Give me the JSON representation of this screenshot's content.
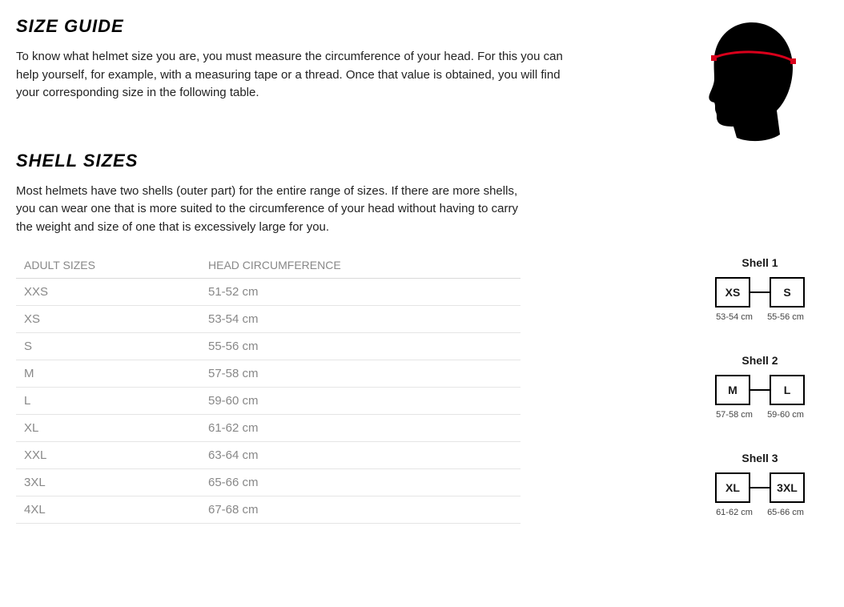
{
  "sizeGuide": {
    "heading": "SIZE GUIDE",
    "intro": "To know what helmet size you are, you must measure the circumference of your head. For this you can help yourself, for example, with a measuring tape or a thread. Once that value is obtained, you will find your corresponding size in the following table."
  },
  "shellSizes": {
    "heading": "SHELL SIZES",
    "intro": "Most helmets have two shells (outer part) for the entire range of sizes. If there are more shells, you can wear one that is more suited to the circumference of your head without having to carry the weight and size of one that is excessively large for you."
  },
  "table": {
    "columns": [
      "ADULT SIZES",
      "HEAD CIRCUMFERENCE"
    ],
    "rows": [
      [
        "XXS",
        "51-52 cm"
      ],
      [
        "XS",
        "53-54 cm"
      ],
      [
        "S",
        "55-56 cm"
      ],
      [
        "M",
        "57-58 cm"
      ],
      [
        "L",
        "59-60 cm"
      ],
      [
        "XL",
        "61-62 cm"
      ],
      [
        "XXL",
        "63-64 cm"
      ],
      [
        "3XL",
        "65-66 cm"
      ],
      [
        "4XL",
        "67-68 cm"
      ]
    ]
  },
  "shells": [
    {
      "title": "Shell 1",
      "left": "XS",
      "leftSub": "53-54 cm",
      "right": "S",
      "rightSub": "55-56 cm"
    },
    {
      "title": "Shell 2",
      "left": "M",
      "leftSub": "57-58 cm",
      "right": "L",
      "rightSub": "59-60 cm"
    },
    {
      "title": "Shell 3",
      "left": "XL",
      "leftSub": "61-62 cm",
      "right": "3XL",
      "rightSub": "65-66 cm"
    }
  ],
  "headIllustration": {
    "silhouetteColor": "#000000",
    "tapeColor": "#d9001b"
  }
}
